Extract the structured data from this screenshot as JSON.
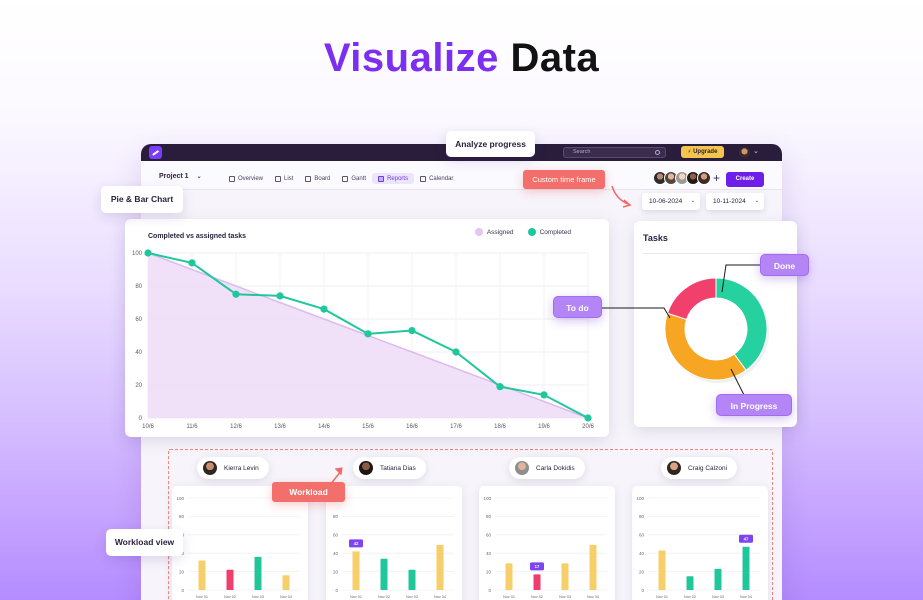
{
  "hero": {
    "accent": "Visualize",
    "rest": "Data"
  },
  "callouts": {
    "analyze_progress": "Analyze progress",
    "pie_bar_chart": "Pie & Bar Chart",
    "custom_time_frame": "Custom time frame",
    "workload": "Workload",
    "workload_view": "Workload view",
    "todo": "To do",
    "done": "Done",
    "in_progress": "In Progress"
  },
  "app": {
    "search_placeholder": "Search",
    "upgrade_label": "Upgrade",
    "project_label": "Project 1",
    "tabs": [
      "Overview",
      "List",
      "Board",
      "Gantt",
      "Reports",
      "Calendar"
    ],
    "active_tab": "Reports",
    "create_label": "Create",
    "date_from": "10-06-2024",
    "date_to": "10-11-2024"
  },
  "colors": {
    "brand": "#6d1ee8",
    "assigned": "#e3c6f3",
    "completed": "#1fc79a",
    "todo": "#f0406b",
    "done": "#26d1a0",
    "in_progress": "#f6a623",
    "bar_yellow": "#f7cf6a",
    "bar_pink": "#ef3d6e",
    "bar_green": "#21c79a",
    "workload_tag": "#7c45f0"
  },
  "chart_data": [
    {
      "type": "line",
      "title": "Completed vs assigned tasks",
      "x": [
        "10/6",
        "11/6",
        "12/6",
        "13/6",
        "14/6",
        "15/6",
        "16/6",
        "17/6",
        "18/6",
        "19/6",
        "20/6"
      ],
      "ylim": [
        0,
        100
      ],
      "yticks": [
        0,
        20,
        40,
        60,
        80,
        100
      ],
      "grid": true,
      "legend_position": "top-right",
      "series": [
        {
          "name": "Assigned",
          "values": [
            100,
            90,
            80,
            70,
            60,
            50,
            40,
            30,
            20,
            10,
            0
          ]
        },
        {
          "name": "Completed",
          "values": [
            100,
            94,
            75,
            74,
            66,
            51,
            53,
            40,
            19,
            14,
            0
          ]
        }
      ]
    },
    {
      "type": "pie",
      "title": "Tasks",
      "donut": true,
      "labels": [
        "Done",
        "In Progress",
        "To do"
      ],
      "values": [
        40,
        40,
        20
      ]
    },
    {
      "type": "bar",
      "person": "Kierra Levin",
      "categories": [
        "Nov 01",
        "Nov 02",
        "Nov 03",
        "Nov 04"
      ],
      "values": [
        32,
        22,
        36,
        16
      ],
      "ylim": [
        0,
        100
      ],
      "yticks": [
        0,
        20,
        40,
        60,
        80,
        100
      ]
    },
    {
      "type": "bar",
      "person": "Tatiana Dias",
      "categories": [
        "Nov 01",
        "Nov 02",
        "Nov 03",
        "Nov 04"
      ],
      "values": [
        42,
        34,
        22,
        49
      ],
      "ylim": [
        0,
        100
      ],
      "yticks": [
        0,
        20,
        40,
        60,
        80,
        100
      ],
      "tag": {
        "index": 0,
        "text": "42"
      }
    },
    {
      "type": "bar",
      "person": "Carla Dokidis",
      "categories": [
        "Nov 01",
        "Nov 02",
        "Nov 03",
        "Nov 04"
      ],
      "values": [
        29,
        17,
        29,
        49
      ],
      "ylim": [
        0,
        100
      ],
      "yticks": [
        0,
        20,
        40,
        60,
        80,
        100
      ],
      "tag": {
        "index": 1,
        "text": "17"
      }
    },
    {
      "type": "bar",
      "person": "Craig Calzoni",
      "categories": [
        "Nov 01",
        "Nov 02",
        "Nov 03",
        "Nov 04"
      ],
      "values": [
        43,
        15,
        23,
        47
      ],
      "ylim": [
        0,
        100
      ],
      "yticks": [
        0,
        20,
        40,
        60,
        80,
        100
      ],
      "tag": {
        "index": 3,
        "text": "47"
      }
    }
  ]
}
